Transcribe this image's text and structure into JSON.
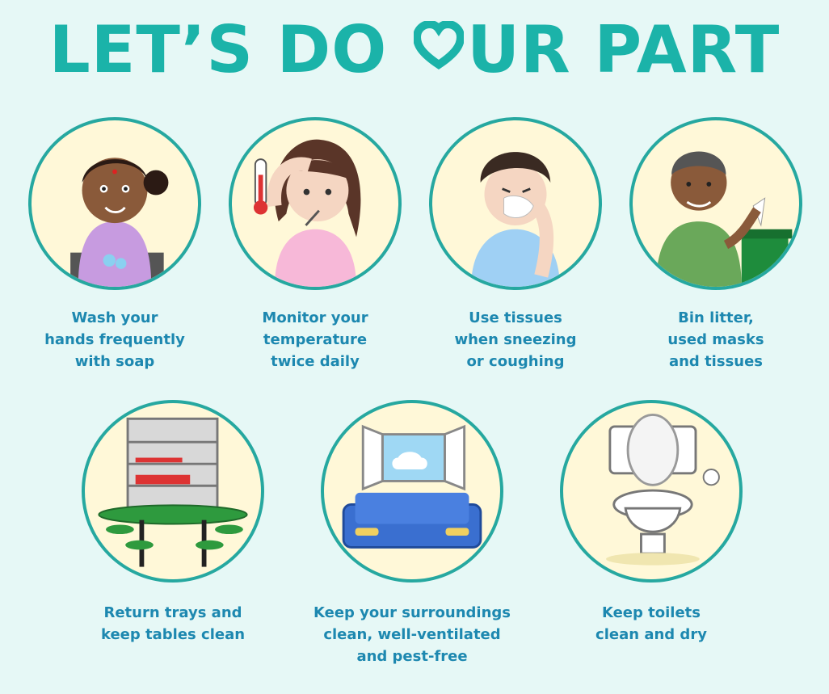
{
  "header": {
    "title_before": "LET’S DO ",
    "title_after": "UR PART",
    "heart_icon": "heart-icon"
  },
  "colors": {
    "background": "#e6f8f6",
    "title": "#1bb3a9",
    "circle_border": "#26a8a0",
    "circle_fill": "#fff8d8",
    "caption": "#1d88b0"
  },
  "tips": [
    {
      "icon": "hand-washing-icon",
      "lines": [
        "Wash your",
        "hands frequently",
        "with soap"
      ]
    },
    {
      "icon": "thermometer-icon",
      "lines": [
        "Monitor your",
        "temperature",
        "twice daily"
      ]
    },
    {
      "icon": "tissue-icon",
      "lines": [
        "Use tissues",
        "when sneezing",
        "or coughing"
      ]
    },
    {
      "icon": "bin-icon",
      "lines": [
        "Bin litter,",
        "used masks",
        "and tissues"
      ]
    },
    {
      "icon": "table-trays-icon",
      "lines": [
        "Return trays and",
        "keep tables clean"
      ]
    },
    {
      "icon": "ventilated-room-icon",
      "lines": [
        "Keep your surroundings",
        "clean, well-ventilated",
        "and pest-free"
      ]
    },
    {
      "icon": "toilet-icon",
      "lines": [
        "Keep toilets",
        "clean and dry"
      ]
    }
  ]
}
